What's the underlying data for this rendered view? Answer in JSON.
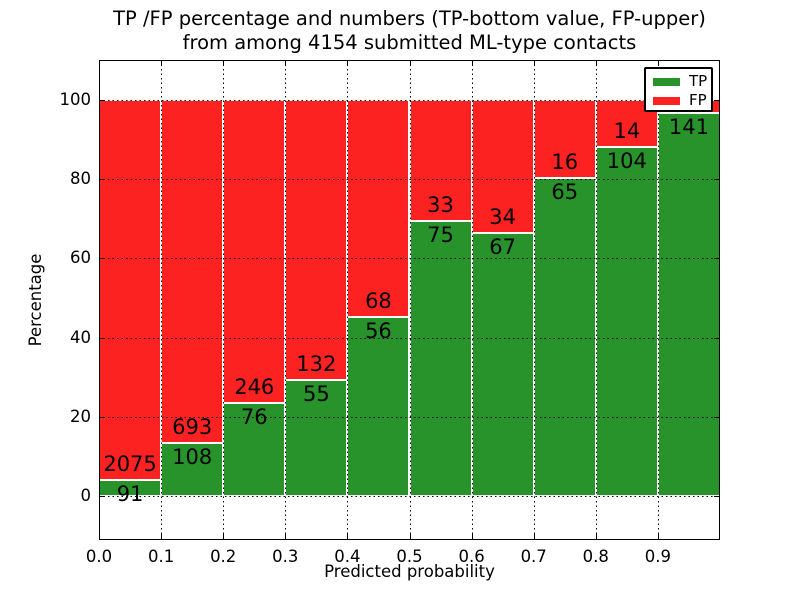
{
  "figure": {
    "title_line1": "TP /FP percentage and numbers (TP-bottom value, FP-upper)",
    "title_line2": "from among 4154 submitted ML-type contacts"
  },
  "chart_data": {
    "type": "bar",
    "stacked": true,
    "normalized_to_percent": true,
    "title": "TP /FP percentage and numbers (TP-bottom value, FP-upper)\nfrom among 4154 submitted ML-type contacts",
    "xlabel": "Predicted probability",
    "ylabel": "Percentage",
    "xlim": [
      0.0,
      1.0
    ],
    "ylim": [
      -11,
      110
    ],
    "x_ticks": [
      {
        "value": 0.0,
        "label": "0.0"
      },
      {
        "value": 0.1,
        "label": "0.1"
      },
      {
        "value": 0.2,
        "label": "0.2"
      },
      {
        "value": 0.3,
        "label": "0.3"
      },
      {
        "value": 0.4,
        "label": "0.4"
      },
      {
        "value": 0.5,
        "label": "0.5"
      },
      {
        "value": 0.6,
        "label": "0.6"
      },
      {
        "value": 0.7,
        "label": "0.7"
      },
      {
        "value": 0.8,
        "label": "0.8"
      },
      {
        "value": 0.9,
        "label": "0.9"
      }
    ],
    "y_ticks": [
      {
        "value": 0,
        "label": "0"
      },
      {
        "value": 20,
        "label": "20"
      },
      {
        "value": 40,
        "label": "40"
      },
      {
        "value": 60,
        "label": "60"
      },
      {
        "value": 80,
        "label": "80"
      },
      {
        "value": 100,
        "label": "100"
      }
    ],
    "grid": true,
    "grid_style": "dotted",
    "total_contacts": 4154,
    "colors": {
      "tp": "#28922b",
      "fp": "#fd2222",
      "bar_edge": "#ffffff",
      "text": "#000000"
    },
    "legend": {
      "position": "upper right",
      "entries": [
        {
          "label": "TP",
          "color": "#28922b"
        },
        {
          "label": "FP",
          "color": "#fd2222"
        }
      ]
    },
    "bars": [
      {
        "bin_start": 0.0,
        "bin_end": 0.1,
        "tp": 91,
        "fp": 2075,
        "tp_label": "91",
        "fp_label": "2075"
      },
      {
        "bin_start": 0.1,
        "bin_end": 0.2,
        "tp": 108,
        "fp": 693,
        "tp_label": "108",
        "fp_label": "693"
      },
      {
        "bin_start": 0.2,
        "bin_end": 0.3,
        "tp": 76,
        "fp": 246,
        "tp_label": "76",
        "fp_label": "246"
      },
      {
        "bin_start": 0.3,
        "bin_end": 0.4,
        "tp": 55,
        "fp": 132,
        "tp_label": "55",
        "fp_label": "132"
      },
      {
        "bin_start": 0.4,
        "bin_end": 0.5,
        "tp": 56,
        "fp": 68,
        "tp_label": "56",
        "fp_label": "68"
      },
      {
        "bin_start": 0.5,
        "bin_end": 0.6,
        "tp": 75,
        "fp": 33,
        "tp_label": "75",
        "fp_label": "33"
      },
      {
        "bin_start": 0.6,
        "bin_end": 0.7,
        "tp": 67,
        "fp": 34,
        "tp_label": "67",
        "fp_label": "34"
      },
      {
        "bin_start": 0.7,
        "bin_end": 0.8,
        "tp": 65,
        "fp": 16,
        "tp_label": "65",
        "fp_label": "16"
      },
      {
        "bin_start": 0.8,
        "bin_end": 0.9,
        "tp": 104,
        "fp": 14,
        "tp_label": "104",
        "fp_label": "14"
      },
      {
        "bin_start": 0.9,
        "bin_end": 1.0,
        "tp": 141,
        "fp": 5,
        "tp_label": "141",
        "fp_label": ""
      }
    ]
  }
}
